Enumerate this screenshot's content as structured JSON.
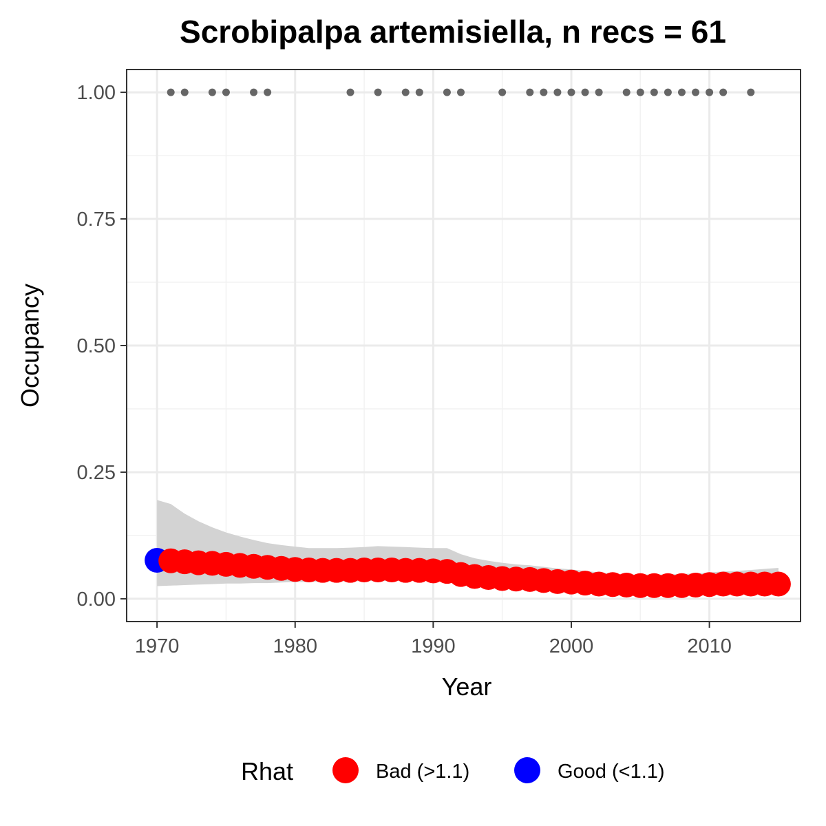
{
  "chart_data": {
    "type": "scatter",
    "title": "Scrobipalpa artemisiella, n recs = 61",
    "xlabel": "Year",
    "ylabel": "Occupancy",
    "xlim": [
      1967.8,
      2016.6
    ],
    "ylim": [
      -0.045,
      1.045
    ],
    "x_ticks": [
      1970,
      1980,
      1990,
      2000,
      2010
    ],
    "x_tick_labels": [
      "1970",
      "1980",
      "1990",
      "2000",
      "2010"
    ],
    "y_ticks": [
      0,
      0.25,
      0.5,
      0.75,
      1.0
    ],
    "y_tick_labels": [
      "0.00",
      "0.25",
      "0.50",
      "0.75",
      "1.00"
    ],
    "grid": true,
    "legend": {
      "title": "Rhat",
      "position": "bottom",
      "entries": [
        {
          "label": "Bad (>1.1)",
          "color": "#ff0000"
        },
        {
          "label": "Good (<1.1)",
          "color": "#0000ff"
        }
      ]
    },
    "colors": {
      "bad": "#ff0000",
      "good": "#0000ff",
      "records": "#666666",
      "ribbon": "#d3d3d3"
    },
    "records": {
      "y": 1.0,
      "years": [
        1971,
        1972,
        1974,
        1975,
        1977,
        1978,
        1984,
        1986,
        1988,
        1989,
        1991,
        1992,
        1995,
        1997,
        1998,
        1999,
        2000,
        2001,
        2002,
        2004,
        2005,
        2006,
        2007,
        2008,
        2009,
        2010,
        2011,
        2013
      ]
    },
    "series": [
      {
        "name": "Occupancy",
        "x": [
          1970,
          1971,
          1972,
          1973,
          1974,
          1975,
          1976,
          1977,
          1978,
          1979,
          1980,
          1981,
          1982,
          1983,
          1984,
          1985,
          1986,
          1987,
          1988,
          1989,
          1990,
          1991,
          1992,
          1993,
          1994,
          1995,
          1996,
          1997,
          1998,
          1999,
          2000,
          2001,
          2002,
          2003,
          2004,
          2005,
          2006,
          2007,
          2008,
          2009,
          2010,
          2011,
          2012,
          2013,
          2014,
          2015
        ],
        "y": [
          0.076,
          0.075,
          0.073,
          0.071,
          0.07,
          0.068,
          0.066,
          0.064,
          0.062,
          0.06,
          0.058,
          0.057,
          0.056,
          0.056,
          0.056,
          0.057,
          0.057,
          0.057,
          0.056,
          0.056,
          0.055,
          0.054,
          0.048,
          0.044,
          0.042,
          0.04,
          0.039,
          0.038,
          0.036,
          0.034,
          0.033,
          0.031,
          0.029,
          0.028,
          0.027,
          0.026,
          0.026,
          0.026,
          0.026,
          0.027,
          0.028,
          0.029,
          0.029,
          0.029,
          0.029,
          0.029
        ],
        "lower": [
          0.025,
          0.026,
          0.027,
          0.028,
          0.029,
          0.03,
          0.03,
          0.031,
          0.031,
          0.032,
          0.033,
          0.033,
          0.034,
          0.034,
          0.034,
          0.035,
          0.035,
          0.035,
          0.035,
          0.035,
          0.035,
          0.035,
          0.031,
          0.028,
          0.026,
          0.024,
          0.022,
          0.021,
          0.019,
          0.018,
          0.017,
          0.016,
          0.015,
          0.014,
          0.014,
          0.013,
          0.013,
          0.013,
          0.013,
          0.013,
          0.014,
          0.014,
          0.014,
          0.015,
          0.015,
          0.016
        ],
        "upper": [
          0.195,
          0.187,
          0.168,
          0.153,
          0.141,
          0.131,
          0.123,
          0.116,
          0.11,
          0.106,
          0.103,
          0.1,
          0.1,
          0.1,
          0.101,
          0.102,
          0.104,
          0.103,
          0.102,
          0.101,
          0.1,
          0.1,
          0.088,
          0.08,
          0.075,
          0.071,
          0.068,
          0.066,
          0.063,
          0.06,
          0.058,
          0.055,
          0.052,
          0.05,
          0.048,
          0.048,
          0.048,
          0.048,
          0.049,
          0.05,
          0.052,
          0.054,
          0.055,
          0.057,
          0.059,
          0.061
        ],
        "rhat": [
          "good",
          "bad",
          "bad",
          "bad",
          "bad",
          "bad",
          "bad",
          "bad",
          "bad",
          "bad",
          "bad",
          "bad",
          "bad",
          "bad",
          "bad",
          "bad",
          "bad",
          "bad",
          "bad",
          "bad",
          "bad",
          "bad",
          "bad",
          "bad",
          "bad",
          "bad",
          "bad",
          "bad",
          "bad",
          "bad",
          "bad",
          "bad",
          "bad",
          "bad",
          "bad",
          "bad",
          "bad",
          "bad",
          "bad",
          "bad",
          "bad",
          "bad",
          "bad",
          "bad",
          "bad",
          "bad"
        ]
      }
    ]
  }
}
